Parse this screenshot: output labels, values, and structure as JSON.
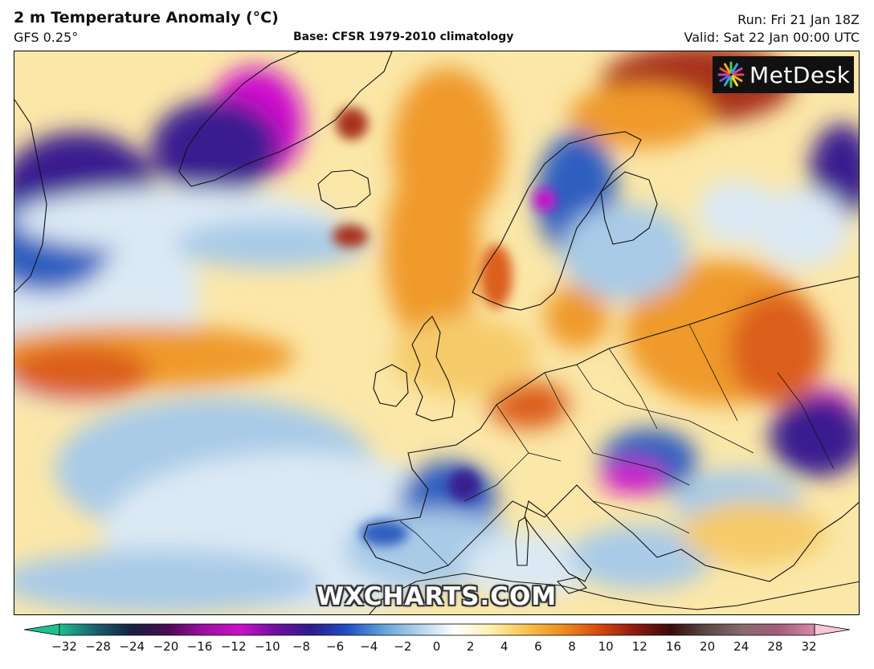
{
  "header": {
    "title": "2 m Temperature Anomaly (°C)",
    "model": "GFS 0.25°",
    "base": "Base: CFSR 1979-2010 climatology",
    "run": "Run: Fri 21 Jan 18Z",
    "valid": "Valid: Sat 22 Jan 00:00 UTC"
  },
  "logo": {
    "text": "MetDesk",
    "icon": "metdesk-starburst-icon"
  },
  "watermark": "WXCHARTS.COM",
  "colorbar": {
    "ticks": [
      "−32",
      "−28",
      "−24",
      "−20",
      "−16",
      "−12",
      "−10",
      "−8",
      "−6",
      "−4",
      "−2",
      "0",
      "2",
      "4",
      "6",
      "8",
      "10",
      "12",
      "16",
      "20",
      "24",
      "28",
      "32"
    ],
    "colors": [
      "#1fbf8f",
      "#1a5f6f",
      "#16213f",
      "#4b0b52",
      "#9d0fa1",
      "#cc10cc",
      "#6f0f9f",
      "#2b1c8c",
      "#1f4fc7",
      "#5fa2dc",
      "#b5d3ea",
      "#ffffff",
      "#fff0b0",
      "#f6c14a",
      "#ee8c1e",
      "#d9480f",
      "#8f1a10",
      "#3a0b0b",
      "#5a4a46",
      "#8a6a6e",
      "#a45d7a",
      "#d98aa8",
      "#f5c8d6"
    ]
  },
  "map": {
    "colors": {
      "deep_purple": "#3b1a8f",
      "magenta": "#cc10cc",
      "blue": "#2f5fc0",
      "light_blue": "#a9cbe7",
      "pale_blue": "#dbe9f4",
      "cream": "#fff6cf",
      "yellow": "#f6cb6a",
      "orange": "#ef9a2c",
      "deep_orange": "#dc5e1b",
      "red_brown": "#a8321b"
    }
  }
}
